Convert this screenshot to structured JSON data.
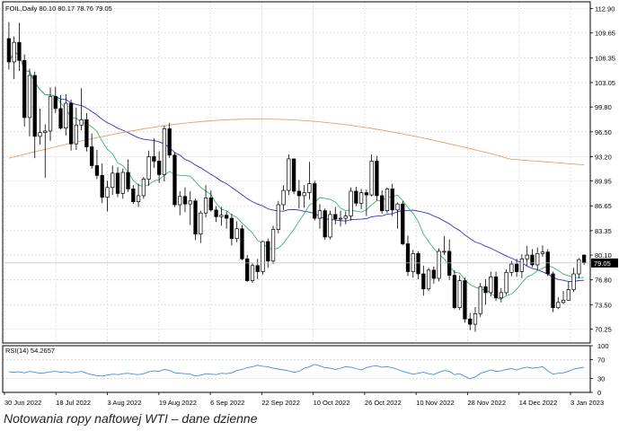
{
  "caption": "Notowania ropy naftowej WTI – dane dzienne",
  "chart_data": [
    {
      "type": "candlestick",
      "title": "FOIL,Daily  80.10 80.17 78.76 79.05",
      "last_price_label": "79.05",
      "ylim": [
        68.4,
        113.8
      ],
      "y_ticks": [
        "112.90",
        "109.65",
        "106.35",
        "103.05",
        "99.80",
        "96.50",
        "93.20",
        "89.95",
        "86.65",
        "83.35",
        "80.10",
        "76.80",
        "73.50",
        "70.25"
      ],
      "x_labels": [
        "30 Jun 2022",
        "18 Jul 2022",
        "3 Aug 2022",
        "19 Aug 2022",
        "6 Sep 2022",
        "22 Sep 2022",
        "10 Oct 2022",
        "26 Oct 2022",
        "10 Nov 2022",
        "28 Nov 2022",
        "14 Dec 2022",
        "3 Jan 2023"
      ],
      "grid": true,
      "colors": {
        "up": "#ffffff",
        "down": "#000000",
        "wick": "#000000",
        "ma_fast": "#3cb371",
        "ma_slow": "#3333cc",
        "ma_long": "#e8a060"
      },
      "candles": [
        [
          108.9,
          111.1,
          104.8,
          105.8
        ],
        [
          105.8,
          109.2,
          103.5,
          108.4
        ],
        [
          108.4,
          111.0,
          104.6,
          106.0
        ],
        [
          106.0,
          106.8,
          97.2,
          98.4
        ],
        [
          98.4,
          104.9,
          95.9,
          104.0
        ],
        [
          104.0,
          104.5,
          93.0,
          95.9
        ],
        [
          95.9,
          99.6,
          94.8,
          96.4
        ],
        [
          96.4,
          97.5,
          90.4,
          96.6
        ],
        [
          96.6,
          102.4,
          95.3,
          101.2
        ],
        [
          101.2,
          102.5,
          99.0,
          99.6
        ],
        [
          99.6,
          101.4,
          96.8,
          97.0
        ],
        [
          97.0,
          101.5,
          96.0,
          100.3
        ],
        [
          100.3,
          100.8,
          94.0,
          94.9
        ],
        [
          94.9,
          99.7,
          94.1,
          97.4
        ],
        [
          97.4,
          102.3,
          96.7,
          98.1
        ],
        [
          98.1,
          99.0,
          93.9,
          94.5
        ],
        [
          94.5,
          96.3,
          91.6,
          92.0
        ],
        [
          92.0,
          94.1,
          90.2,
          90.7
        ],
        [
          90.7,
          92.3,
          87.0,
          87.8
        ],
        [
          87.8,
          90.0,
          85.9,
          89.1
        ],
        [
          89.1,
          92.0,
          88.1,
          91.0
        ],
        [
          91.0,
          91.8,
          87.8,
          88.3
        ],
        [
          88.3,
          91.6,
          87.6,
          91.1
        ],
        [
          91.1,
          92.8,
          88.5,
          88.9
        ],
        [
          88.9,
          89.4,
          86.9,
          87.2
        ],
        [
          87.2,
          89.6,
          86.5,
          88.0
        ],
        [
          88.0,
          90.5,
          87.6,
          90.2
        ],
        [
          90.2,
          94.0,
          89.3,
          93.2
        ],
        [
          93.2,
          95.6,
          91.7,
          92.6
        ],
        [
          92.6,
          93.9,
          89.7,
          90.8
        ],
        [
          90.8,
          97.3,
          89.9,
          96.9
        ],
        [
          96.9,
          97.7,
          93.0,
          93.4
        ],
        [
          93.4,
          93.8,
          86.5,
          86.8
        ],
        [
          86.8,
          88.6,
          85.4,
          87.9
        ],
        [
          87.9,
          89.1,
          85.8,
          86.9
        ],
        [
          86.9,
          88.6,
          84.1,
          87.3
        ],
        [
          87.3,
          87.6,
          82.1,
          82.9
        ],
        [
          82.9,
          86.0,
          81.7,
          85.7
        ],
        [
          85.7,
          89.4,
          85.1,
          87.7
        ],
        [
          87.7,
          88.7,
          85.9,
          86.1
        ],
        [
          86.1,
          86.6,
          84.5,
          85.2
        ],
        [
          85.2,
          86.5,
          84.0,
          85.4
        ],
        [
          85.4,
          85.9,
          83.6,
          85.0
        ],
        [
          85.0,
          85.6,
          81.4,
          82.3
        ],
        [
          82.3,
          84.6,
          81.8,
          83.6
        ],
        [
          83.6,
          84.1,
          79.4,
          79.6
        ],
        [
          79.6,
          80.1,
          76.5,
          76.7
        ],
        [
          76.7,
          79.1,
          76.4,
          78.7
        ],
        [
          78.7,
          79.6,
          76.9,
          77.9
        ],
        [
          77.9,
          82.0,
          77.5,
          81.9
        ],
        [
          81.9,
          82.3,
          78.4,
          79.3
        ],
        [
          79.3,
          84.0,
          78.9,
          83.5
        ],
        [
          83.5,
          87.3,
          83.0,
          86.8
        ],
        [
          86.8,
          89.4,
          86.1,
          88.7
        ],
        [
          88.7,
          93.5,
          88.1,
          92.9
        ],
        [
          92.9,
          92.9,
          88.2,
          88.6
        ],
        [
          88.6,
          90.1,
          86.3,
          88.0
        ],
        [
          88.0,
          89.4,
          86.4,
          88.4
        ],
        [
          88.4,
          92.5,
          87.5,
          89.6
        ],
        [
          89.6,
          90.0,
          84.7,
          85.0
        ],
        [
          85.0,
          86.9,
          83.6,
          86.0
        ],
        [
          86.0,
          86.3,
          82.1,
          82.5
        ],
        [
          82.5,
          86.0,
          82.2,
          85.5
        ],
        [
          85.5,
          86.5,
          84.2,
          84.9
        ],
        [
          84.9,
          86.0,
          83.9,
          85.0
        ],
        [
          85.0,
          85.9,
          84.2,
          85.3
        ],
        [
          85.3,
          89.1,
          84.7,
          88.6
        ],
        [
          88.6,
          89.2,
          86.6,
          87.0
        ],
        [
          87.0,
          88.9,
          86.2,
          88.4
        ],
        [
          88.4,
          88.8,
          85.3,
          88.1
        ],
        [
          88.1,
          93.5,
          87.9,
          92.6
        ],
        [
          92.6,
          93.3,
          87.4,
          88.0
        ],
        [
          88.0,
          88.7,
          85.6,
          86.0
        ],
        [
          86.0,
          89.1,
          85.7,
          88.9
        ],
        [
          88.9,
          89.6,
          85.3,
          86.1
        ],
        [
          86.1,
          87.1,
          83.6,
          86.9
        ],
        [
          86.9,
          87.3,
          81.4,
          81.6
        ],
        [
          81.6,
          82.7,
          77.3,
          77.9
        ],
        [
          77.9,
          80.8,
          77.1,
          80.3
        ],
        [
          80.3,
          80.6,
          76.9,
          77.6
        ],
        [
          77.6,
          78.7,
          74.7,
          75.6
        ],
        [
          75.6,
          78.4,
          75.3,
          78.1
        ],
        [
          78.1,
          78.6,
          76.3,
          77.0
        ],
        [
          77.0,
          81.0,
          76.6,
          80.6
        ],
        [
          80.6,
          82.6,
          80.1,
          80.6
        ],
        [
          80.6,
          82.2,
          76.8,
          77.4
        ],
        [
          77.4,
          78.1,
          72.9,
          73.1
        ],
        [
          73.1,
          77.4,
          72.8,
          76.7
        ],
        [
          76.7,
          77.1,
          71.1,
          71.6
        ],
        [
          71.6,
          72.4,
          70.1,
          70.9
        ],
        [
          70.9,
          73.2,
          69.9,
          72.3
        ],
        [
          72.3,
          76.4,
          71.9,
          75.9
        ],
        [
          75.9,
          76.9,
          73.5,
          75.1
        ],
        [
          75.1,
          77.9,
          74.6,
          77.2
        ],
        [
          77.2,
          77.9,
          74.0,
          74.4
        ],
        [
          74.4,
          75.7,
          73.8,
          75.1
        ],
        [
          75.1,
          78.2,
          74.8,
          77.8
        ],
        [
          77.8,
          79.3,
          77.3,
          78.9
        ],
        [
          78.9,
          79.6,
          77.2,
          77.9
        ],
        [
          77.9,
          80.2,
          77.0,
          79.6
        ],
        [
          79.6,
          81.3,
          78.7,
          80.1
        ],
        [
          80.1,
          80.9,
          78.5,
          78.8
        ],
        [
          78.8,
          81.1,
          78.1,
          80.3
        ],
        [
          80.3,
          81.4,
          79.9,
          80.5
        ],
        [
          80.5,
          80.9,
          77.3,
          77.6
        ],
        [
          77.6,
          77.9,
          72.5,
          73.1
        ],
        [
          73.1,
          74.5,
          72.9,
          73.8
        ],
        [
          73.8,
          75.3,
          73.6,
          74.1
        ],
        [
          74.1,
          76.6,
          74.0,
          75.5
        ],
        [
          75.5,
          78.4,
          75.2,
          77.6
        ],
        [
          77.6,
          79.7,
          77.0,
          79.5
        ],
        [
          80.1,
          80.2,
          78.8,
          79.1
        ]
      ],
      "rsi": {
        "label": "RSI(14) 54.2657",
        "ylim": [
          0,
          100
        ],
        "ticks": [
          "100",
          "70",
          "30",
          "0"
        ],
        "levels": [
          70,
          30
        ],
        "values": [
          44,
          43,
          44,
          42,
          45,
          43,
          41,
          42,
          44,
          45,
          43,
          44,
          42,
          43,
          45,
          41,
          38,
          36,
          35,
          37,
          39,
          38,
          40,
          41,
          39,
          38,
          40,
          44,
          46,
          45,
          49,
          47,
          42,
          41,
          40,
          39,
          35,
          37,
          40,
          39,
          38,
          41,
          40,
          42,
          47,
          49,
          53,
          55,
          58,
          56,
          55,
          52,
          50,
          48,
          46,
          43,
          45,
          52,
          55,
          60,
          57,
          53,
          52,
          49,
          52,
          55,
          54,
          51,
          48,
          53,
          56,
          57,
          54,
          55,
          53,
          49,
          45,
          42,
          39,
          41,
          43,
          40,
          38,
          43,
          47,
          45,
          38,
          40,
          34,
          29,
          33,
          41,
          44,
          48,
          45,
          46,
          49,
          51,
          48,
          52,
          54,
          52,
          53,
          55,
          46,
          39,
          41,
          42,
          45,
          50,
          52,
          54
        ]
      }
    }
  ]
}
